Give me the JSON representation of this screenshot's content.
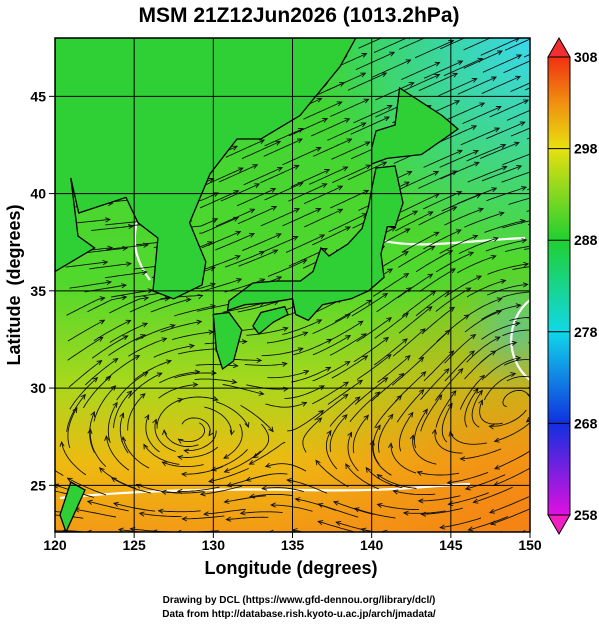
{
  "title": "MSM 21Z12Jun2026 (1013.2hPa)",
  "x_axis": {
    "label": "Longitude (degrees)",
    "lim": [
      120,
      150
    ],
    "ticks": [
      120,
      125,
      130,
      135,
      140,
      145,
      150
    ]
  },
  "y_axis": {
    "label": "Latitude  (degrees)",
    "lim": [
      22.6,
      48
    ],
    "ticks": [
      25,
      30,
      35,
      40,
      45
    ]
  },
  "colorbar": {
    "lim": [
      258,
      308
    ],
    "ticks": [
      258,
      268,
      278,
      288,
      298,
      308
    ]
  },
  "credits": [
    "Drawing by DCL (https://www.gfd-dennou.org/library/dcl/)",
    "Data from http://database.rish.kyoto-u.ac.jp/arch/jmadata/"
  ]
}
